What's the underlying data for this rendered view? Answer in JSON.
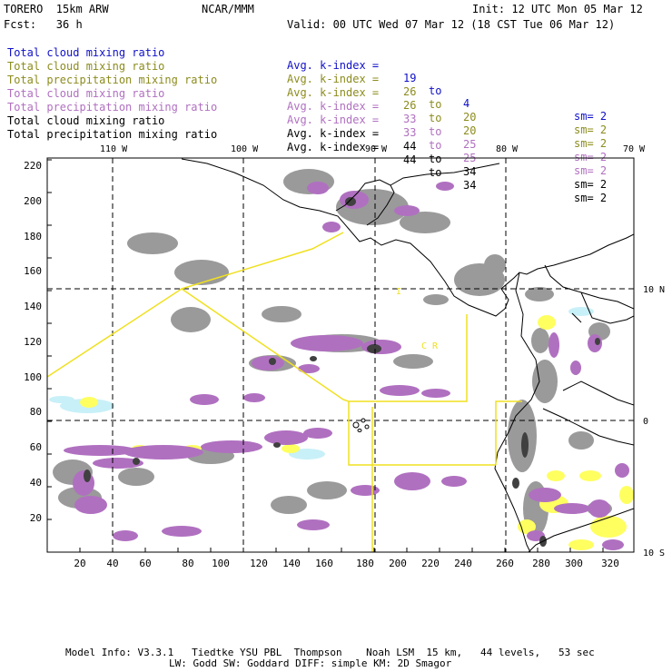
{
  "header": {
    "model": "TORERO  15km ARW",
    "org": "NCAR/MMM",
    "init": "Init: 12 UTC Mon 05 Mar 12",
    "fcst": "Fcst:   36 h",
    "valid": "Valid: 00 UTC Wed 07 Mar 12 (18 CST Tue 06 Mar 12)"
  },
  "legend": [
    {
      "field": "Total cloud mixing ratio",
      "kindex_label": "Avg. k-index =",
      "from": "19",
      "to_word": "to",
      "to": "4",
      "sm": "sm= 2",
      "color": "#1010c8"
    },
    {
      "field": "Total cloud mixing ratio",
      "kindex_label": "Avg. k-index =",
      "from": "26",
      "to_word": "to",
      "to": "20",
      "sm": "sm= 2",
      "color": "#8c8c1e"
    },
    {
      "field": "Total precipitation mixing ratio",
      "kindex_label": "Avg. k-index =",
      "from": "26",
      "to_word": "to",
      "to": "20",
      "sm": "sm= 2",
      "color": "#8c8c1e"
    },
    {
      "field": "Total cloud mixing ratio",
      "kindex_label": "Avg. k-index =",
      "from": "33",
      "to_word": "to",
      "to": "25",
      "sm": "sm= 2",
      "color": "#b070c0"
    },
    {
      "field": "Total precipitation mixing ratio",
      "kindex_label": "Avg. k-index =",
      "from": "33",
      "to_word": "to",
      "to": "25",
      "sm": "sm= 2",
      "color": "#b070c0"
    },
    {
      "field": "Total cloud mixing ratio",
      "kindex_label": "Avg. k-index =",
      "from": "44",
      "to_word": "to",
      "to": "34",
      "sm": "sm= 2",
      "color": "#000000"
    },
    {
      "field": "Total precipitation mixing ratio",
      "kindex_label": "Avg. k-index =",
      "from": "44",
      "to_word": "to",
      "to": "34",
      "sm": "sm= 2",
      "color": "#000000"
    }
  ],
  "map": {
    "lon_labels": [
      "110 W",
      "100 W",
      "90 W",
      "80 W",
      "70 W"
    ],
    "lat_labels": [
      "10 N",
      "0",
      "10 S"
    ],
    "x_ticks": [
      "20",
      "40",
      "60",
      "80",
      "100",
      "120",
      "140",
      "160",
      "180",
      "200",
      "220",
      "240",
      "260",
      "280",
      "300",
      "320"
    ],
    "y_ticks": [
      "220",
      "200",
      "180",
      "160",
      "140",
      "120",
      "100",
      "80",
      "60",
      "40",
      "20"
    ],
    "box_label_letters": "C  R",
    "colors": {
      "grey": "#9a9a9a",
      "dark": "#404040",
      "yellow": "#ffff60",
      "purple": "#b070c0",
      "cyan": "#c8f0f8",
      "box": "#f0e020"
    }
  },
  "footer": {
    "line1": "Model Info: V3.3.1   Tiedtke YSU PBL  Thompson    Noah LSM  15 km,   44 levels,   53 sec",
    "line2": "LW: Godd SW: Goddard DIFF: simple KM: 2D Smagor"
  }
}
